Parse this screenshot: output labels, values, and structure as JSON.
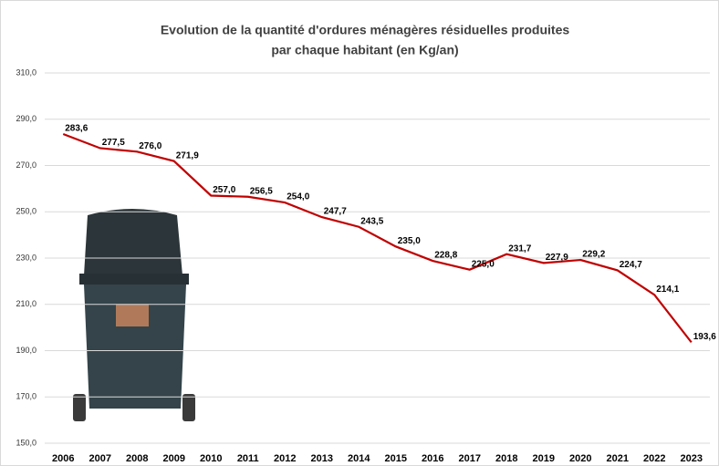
{
  "chart_data": {
    "type": "line",
    "title": [
      "Evolution de la quantité d'ordures ménagères résiduelles produites",
      "par chaque habitant (en Kg/an)"
    ],
    "categories": [
      "2006",
      "2007",
      "2008",
      "2009",
      "2010",
      "2011",
      "2012",
      "2013",
      "2014",
      "2015",
      "2016",
      "2017",
      "2018",
      "2019",
      "2020",
      "2021",
      "2022",
      "2023"
    ],
    "series": [
      {
        "color": "#c00000",
        "values": [
          283.6,
          277.5,
          276.0,
          271.9,
          257.0,
          256.5,
          254.0,
          247.7,
          243.5,
          235.0,
          228.8,
          225.0,
          231.7,
          227.9,
          229.2,
          224.7,
          214.1,
          193.6
        ],
        "value_labels": [
          "283,6",
          "277,5",
          "276,0",
          "271,9",
          "257,0",
          "256,5",
          "254,0",
          "247,7",
          "243,5",
          "235,0",
          "228,8",
          "225,0",
          "231,7",
          "227,9",
          "229,2",
          "224,7",
          "214,1",
          "193,6"
        ]
      }
    ],
    "ylim": [
      150,
      310
    ],
    "yticks": [
      {
        "value": 150,
        "label": "150,0"
      },
      {
        "value": 170,
        "label": "170,0"
      },
      {
        "value": 190,
        "label": "190,0"
      },
      {
        "value": 210,
        "label": "210,0"
      },
      {
        "value": 230,
        "label": "230,0"
      },
      {
        "value": 250,
        "label": "250,0"
      },
      {
        "value": 270,
        "label": "270,0"
      },
      {
        "value": 290,
        "label": "290,0"
      },
      {
        "value": 310,
        "label": "310,0"
      }
    ],
    "grid": true
  }
}
